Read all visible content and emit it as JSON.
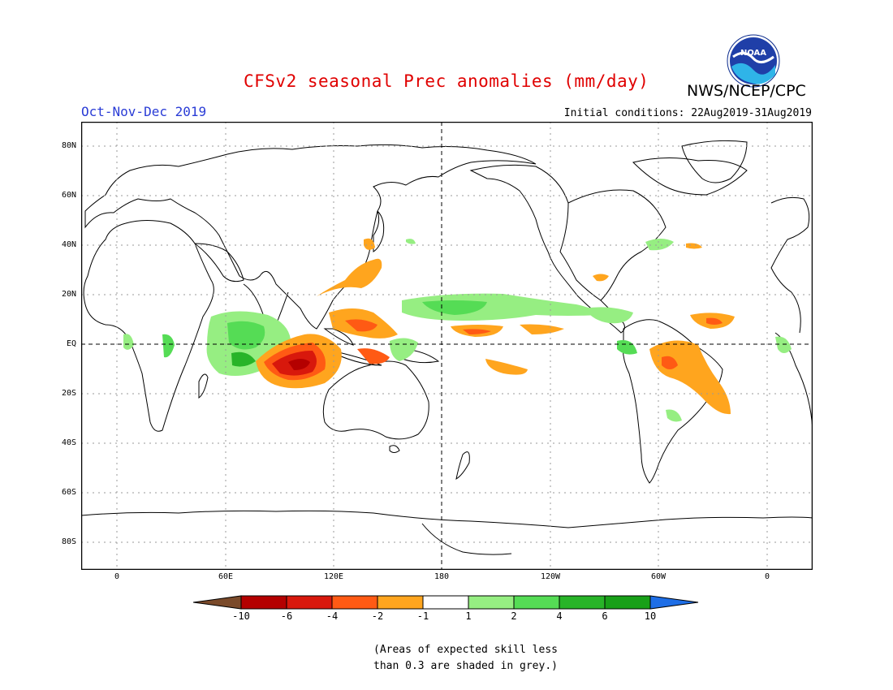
{
  "title": "CFSv2 seasonal Prec anomalies (mm/day)",
  "organization": "NWS/NCEP/CPC",
  "season": "Oct-Nov-Dec 2019",
  "initial_conditions": "Initial conditions: 22Aug2019-31Aug2019",
  "logo_text": "NOAA",
  "lat_labels": [
    "80N",
    "60N",
    "40N",
    "20N",
    "EQ",
    "20S",
    "40S",
    "60S",
    "80S"
  ],
  "lon_labels": [
    "0",
    "60E",
    "120E",
    "180",
    "120W",
    "60W",
    "0"
  ],
  "colorbar": {
    "labels": [
      "-10",
      "-6",
      "-4",
      "-2",
      "-1",
      "1",
      "2",
      "4",
      "6",
      "10"
    ],
    "colors": [
      "#7a4a2a",
      "#b40000",
      "#d8180c",
      "#ff5a14",
      "#ffa51e",
      "#ffffff",
      "#96ee82",
      "#55dc55",
      "#28b428",
      "#18a018",
      "#1e6ee6"
    ]
  },
  "note_line1": "(Areas of expected skill less",
  "note_line2": "than 0.3 are shaded in grey.)",
  "colors": {
    "title": "#e00000",
    "season": "#2a3cd6"
  }
}
